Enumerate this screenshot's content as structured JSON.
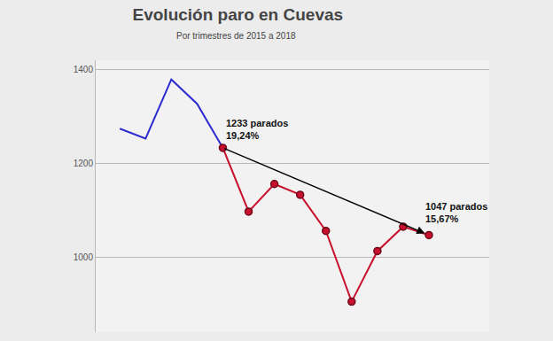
{
  "chart_data": {
    "type": "line",
    "title": "Evolución paro en Cuevas",
    "subtitle": "Por trimestres de 2015 a 2018",
    "categories": [
      null,
      null,
      null,
      null,
      null,
      null,
      null,
      null,
      null,
      null,
      null,
      null,
      null
    ],
    "series": [
      {
        "color": "#2b2bd0",
        "marker": "none",
        "values": [
          1274,
          1253,
          1379,
          1327,
          1233,
          null,
          null,
          null,
          null,
          null,
          null,
          null,
          null
        ]
      },
      {
        "color": "#c8102e",
        "marker": "circle",
        "values": [
          null,
          null,
          null,
          null,
          1233,
          1097,
          1156,
          1133,
          1056,
          905,
          1013,
          1065,
          1047
        ]
      }
    ],
    "ylim": [
      840,
      1420
    ],
    "yticks": [
      1000,
      1200,
      1400
    ],
    "grid": true,
    "tick_labels": "y",
    "annotations": [
      {
        "category_index": 4,
        "value": 1233,
        "text": "1233 parados",
        "subtext": "19,24%"
      },
      {
        "category_index": 12,
        "value": 1047,
        "text": "1047 parados",
        "subtext": "15,67%"
      }
    ],
    "trend_arrow": {
      "from_index": 4,
      "to_index": 12,
      "color": "#000000"
    }
  }
}
